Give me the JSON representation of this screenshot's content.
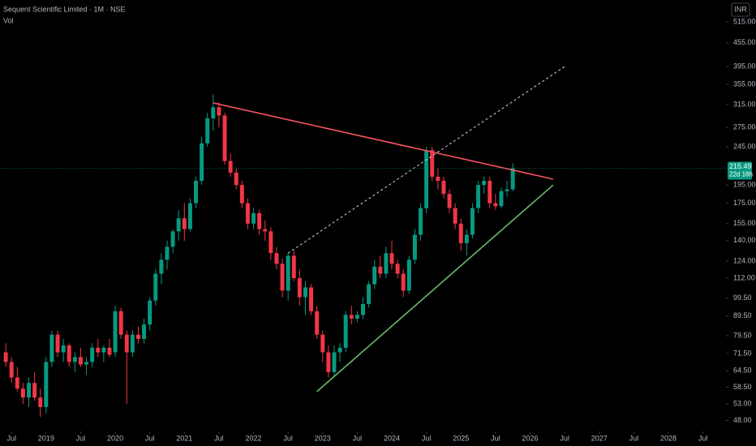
{
  "chart_data": {
    "type": "candlestick",
    "title": "Sequent Scientific Limited · 1M · NSE",
    "indicator": "Vol",
    "currency": "INR",
    "last_price": {
      "value": 215.49,
      "label": "215.49"
    },
    "countdown": "22d 18h",
    "up_color": "#089981",
    "down_color": "#f23645",
    "log_scale": true,
    "x": [
      "2018-06",
      "2018-07",
      "2018-08",
      "2018-09",
      "2018-10",
      "2018-11",
      "2018-12",
      "2019-01",
      "2019-02",
      "2019-03",
      "2019-04",
      "2019-05",
      "2019-06",
      "2019-07",
      "2019-08",
      "2019-09",
      "2019-10",
      "2019-11",
      "2019-12",
      "2020-01",
      "2020-02",
      "2020-03",
      "2020-04",
      "2020-05",
      "2020-06",
      "2020-07",
      "2020-08",
      "2020-09",
      "2020-10",
      "2020-11",
      "2020-12",
      "2021-01",
      "2021-02",
      "2021-03",
      "2021-04",
      "2021-05",
      "2021-06",
      "2021-07",
      "2021-08",
      "2021-09",
      "2021-10",
      "2021-11",
      "2021-12",
      "2022-01",
      "2022-02",
      "2022-03",
      "2022-04",
      "2022-05",
      "2022-06",
      "2022-07",
      "2022-08",
      "2022-09",
      "2022-10",
      "2022-11",
      "2022-12",
      "2023-01",
      "2023-02",
      "2023-03",
      "2023-04",
      "2023-05",
      "2023-06",
      "2023-07",
      "2023-08",
      "2023-09",
      "2023-10",
      "2023-11",
      "2023-12",
      "2024-01",
      "2024-02",
      "2024-03",
      "2024-04",
      "2024-05",
      "2024-06",
      "2024-07",
      "2024-08",
      "2024-09",
      "2024-10",
      "2024-11",
      "2024-12",
      "2025-01",
      "2025-02",
      "2025-03",
      "2025-04",
      "2025-05",
      "2025-06",
      "2025-07",
      "2025-08",
      "2025-09",
      "2025-10"
    ],
    "open": [
      72,
      68,
      62,
      58,
      55,
      60,
      55,
      52,
      68,
      80,
      72,
      75,
      68,
      70,
      67,
      68,
      74,
      72,
      74,
      72,
      92,
      80,
      72,
      80,
      78,
      85,
      98,
      115,
      125,
      135,
      148,
      160,
      150,
      175,
      200,
      250,
      290,
      310,
      295,
      225,
      210,
      195,
      175,
      155,
      165,
      150,
      148,
      130,
      122,
      104,
      128,
      112,
      100,
      106,
      92,
      80,
      72,
      64,
      72,
      74,
      90,
      88,
      90,
      96,
      108,
      120,
      115,
      130,
      122,
      115,
      104,
      125,
      145,
      170,
      240,
      205,
      200,
      185,
      170,
      155,
      138,
      145,
      170,
      195,
      200,
      175,
      172,
      188,
      190
    ],
    "high": [
      76,
      70,
      66,
      60,
      62,
      64,
      58,
      70,
      82,
      82,
      78,
      76,
      72,
      74,
      70,
      76,
      78,
      75,
      78,
      95,
      94,
      82,
      82,
      84,
      88,
      100,
      118,
      130,
      140,
      150,
      168,
      175,
      180,
      205,
      260,
      300,
      335,
      320,
      300,
      235,
      215,
      200,
      180,
      170,
      168,
      158,
      152,
      135,
      126,
      130,
      132,
      118,
      110,
      108,
      95,
      82,
      75,
      75,
      76,
      92,
      95,
      92,
      100,
      110,
      125,
      128,
      135,
      140,
      125,
      118,
      128,
      150,
      175,
      245,
      245,
      215,
      205,
      190,
      175,
      160,
      150,
      175,
      200,
      205,
      205,
      185,
      192,
      200,
      222
    ],
    "low": [
      66,
      60,
      57,
      53,
      52,
      54,
      49,
      50,
      66,
      70,
      68,
      66,
      64,
      66,
      63,
      66,
      70,
      68,
      70,
      70,
      78,
      53,
      70,
      76,
      76,
      82,
      95,
      108,
      118,
      130,
      140,
      140,
      148,
      170,
      195,
      245,
      270,
      275,
      220,
      205,
      190,
      170,
      150,
      150,
      145,
      140,
      125,
      118,
      100,
      98,
      110,
      95,
      90,
      90,
      78,
      68,
      62,
      62,
      68,
      72,
      85,
      86,
      88,
      94,
      105,
      112,
      112,
      118,
      112,
      100,
      102,
      122,
      140,
      165,
      200,
      190,
      180,
      165,
      150,
      132,
      128,
      142,
      165,
      185,
      170,
      168,
      170,
      182,
      188
    ],
    "close": [
      68,
      62,
      58,
      55,
      60,
      55,
      52,
      68,
      80,
      72,
      75,
      68,
      70,
      67,
      68,
      74,
      72,
      74,
      71,
      92,
      80,
      72,
      80,
      78,
      85,
      98,
      115,
      125,
      135,
      148,
      160,
      150,
      175,
      200,
      250,
      290,
      310,
      295,
      225,
      210,
      195,
      175,
      155,
      165,
      150,
      148,
      130,
      122,
      104,
      128,
      112,
      100,
      106,
      92,
      80,
      72,
      64,
      72,
      74,
      90,
      88,
      90,
      96,
      108,
      120,
      115,
      130,
      122,
      115,
      104,
      125,
      145,
      170,
      240,
      205,
      200,
      185,
      170,
      155,
      138,
      145,
      170,
      195,
      200,
      175,
      172,
      188,
      190,
      215.49
    ],
    "xlim": [
      "2018-05",
      "2028-11"
    ],
    "xticks": [
      {
        "value": "2018-07",
        "label": "Jul"
      },
      {
        "value": "2019-01",
        "label": "2019"
      },
      {
        "value": "2019-07",
        "label": "Jul"
      },
      {
        "value": "2020-01",
        "label": "2020"
      },
      {
        "value": "2020-07",
        "label": "Jul"
      },
      {
        "value": "2021-01",
        "label": "2021"
      },
      {
        "value": "2021-07",
        "label": "Jul"
      },
      {
        "value": "2022-01",
        "label": "2022"
      },
      {
        "value": "2022-07",
        "label": "Jul"
      },
      {
        "value": "2023-01",
        "label": "2023"
      },
      {
        "value": "2023-07",
        "label": "Jul"
      },
      {
        "value": "2024-01",
        "label": "2024"
      },
      {
        "value": "2024-07",
        "label": "Jul"
      },
      {
        "value": "2025-01",
        "label": "2025"
      },
      {
        "value": "2025-07",
        "label": "Jul"
      },
      {
        "value": "2026-01",
        "label": "2026"
      },
      {
        "value": "2026-07",
        "label": "Jul"
      },
      {
        "value": "2027-01",
        "label": "2027"
      },
      {
        "value": "2027-07",
        "label": "Jul"
      },
      {
        "value": "2028-01",
        "label": "2028"
      },
      {
        "value": "2028-07",
        "label": "Jul"
      }
    ],
    "ylim": [
      45.4,
      587
    ],
    "yticks": [
      {
        "value": 515,
        "label": "515.00"
      },
      {
        "value": 455,
        "label": "455.00"
      },
      {
        "value": 395,
        "label": "395.00"
      },
      {
        "value": 355,
        "label": "355.00"
      },
      {
        "value": 315,
        "label": "315.00"
      },
      {
        "value": 275,
        "label": "275.00"
      },
      {
        "value": 245,
        "label": "245.00"
      },
      {
        "value": 195,
        "label": "195.00"
      },
      {
        "value": 175,
        "label": "175.00"
      },
      {
        "value": 155,
        "label": "155.00"
      },
      {
        "value": 140,
        "label": "140.00"
      },
      {
        "value": 124,
        "label": "124.00"
      },
      {
        "value": 112,
        "label": "112.00"
      },
      {
        "value": 99.5,
        "label": "99.50"
      },
      {
        "value": 89.5,
        "label": "89.50"
      },
      {
        "value": 79.5,
        "label": "79.50"
      },
      {
        "value": 71.5,
        "label": "71.50"
      },
      {
        "value": 64.5,
        "label": "64.50"
      },
      {
        "value": 58.5,
        "label": "58.50"
      },
      {
        "value": 53,
        "label": "53.00"
      },
      {
        "value": 48,
        "label": "48.00"
      }
    ],
    "trendlines": [
      {
        "color": "#f7525f",
        "style": "solid",
        "x": [
          "2021-06",
          "2026-05"
        ],
        "y": [
          318,
          202
        ]
      },
      {
        "color": "#66bb6a",
        "style": "solid",
        "x": [
          "2022-12",
          "2026-05"
        ],
        "y": [
          57,
          195
        ]
      },
      {
        "color": "#d1d4dc",
        "style": "dotted",
        "x": [
          "2022-07",
          "2026-07"
        ],
        "y": [
          130,
          395
        ]
      }
    ]
  }
}
